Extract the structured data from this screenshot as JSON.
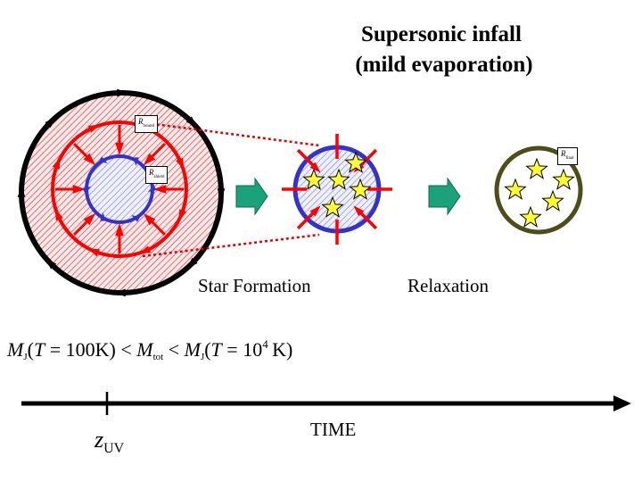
{
  "title": {
    "line1": "Supersonic infall",
    "line2": "(mild evaporation)"
  },
  "labels": {
    "star_formation": "Star Formation",
    "relaxation": "Relaxation",
    "time_axis": "TIME"
  },
  "radius_tags": {
    "bound": {
      "symbol": "R",
      "subscript": "bound"
    },
    "shield": {
      "symbol": "R",
      "subscript": "shield"
    },
    "final": {
      "symbol": "R",
      "subscript": "final"
    }
  },
  "condition": {
    "mass_symbol": "M",
    "jeans_subscript": "J",
    "temperature_symbol": "T",
    "low_temperature": "100K",
    "total_subscript": "tot",
    "high_temperature_base": "10",
    "high_temperature_exponent": "4",
    "high_temperature_unit": "K"
  },
  "epoch_marker": {
    "symbol": "z",
    "subscript": "UV"
  },
  "colors": {
    "outer_ring": "#000000",
    "infall_ring": "#ff0000",
    "shield_ring": "#3333cc",
    "process_arrow": "#1aa37a",
    "star_fill": "#ffff33",
    "final_ring": "#4d4d1a",
    "hatch": "#cc3333"
  }
}
